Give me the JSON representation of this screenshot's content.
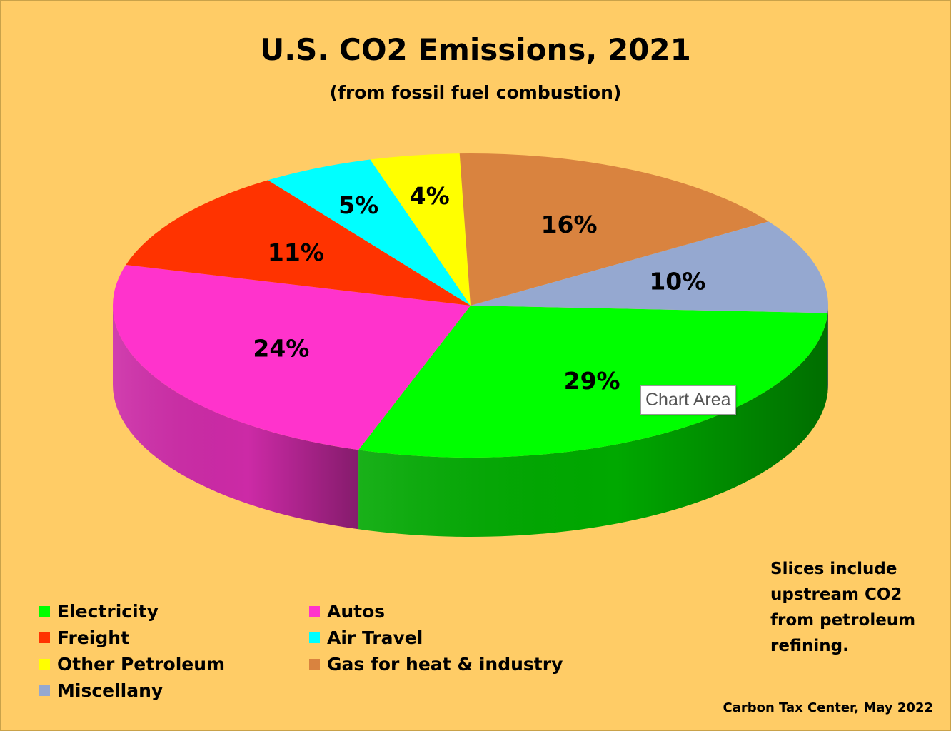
{
  "chart_data": {
    "type": "pie",
    "title": "U.S. CO2 Emissions, 2021",
    "subtitle": "(from fossil fuel combustion)",
    "categories": [
      "Electricity",
      "Autos",
      "Freight",
      "Air Travel",
      "Other Petroleum",
      "Gas for heat & industry",
      "Miscellany"
    ],
    "values": [
      29,
      24,
      11,
      5,
      4,
      16,
      10
    ],
    "data_labels": [
      "29%",
      "24%",
      "11%",
      "5%",
      "4%",
      "16%",
      "10%"
    ],
    "unit": "%",
    "colors": [
      "#00ff00",
      "#ff33cc",
      "#ff3300",
      "#00ffff",
      "#ffff00",
      "#d9833f",
      "#95a8d0"
    ],
    "side_colors": [
      "#00a800",
      "#cc2aa6",
      "#c82800",
      "#00bcbc",
      "#c8c800",
      "#a86028",
      "#3c4660"
    ],
    "legend": {
      "placement": "bottom-left",
      "items": [
        "Electricity",
        "Autos",
        "Freight",
        "Air Travel",
        "Other Petroleum",
        "Gas for heat & industry",
        "Miscellany"
      ]
    },
    "style": "3d"
  },
  "note": {
    "lines": [
      "Slices include",
      "upstream CO2",
      "from petroleum",
      "refining."
    ]
  },
  "source": "Carbon Tax Center, May 2022",
  "tooltip": "Chart Area",
  "background_color": "#ffcc66"
}
